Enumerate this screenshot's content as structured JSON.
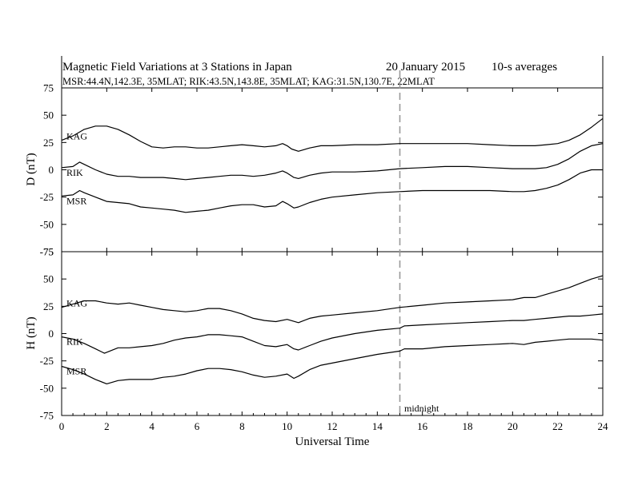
{
  "chart_data": {
    "type": "line",
    "title_left": "Magnetic Field Variations at 3 Stations in Japan",
    "title_date": "20 January 2015",
    "title_right": "10-s averages",
    "subtitle": "MSR:44.4N,142.3E, 35MLAT;  RIK:43.5N,143.8E, 35MLAT;  KAG:31.5N,130.7E, 22MLAT",
    "xlabel": "Universal Time",
    "xlim": [
      0,
      24
    ],
    "xticks": [
      0,
      2,
      4,
      6,
      8,
      10,
      12,
      14,
      16,
      18,
      20,
      22,
      24
    ],
    "midnight_line": {
      "x": 15,
      "label": "midnight"
    },
    "panels": [
      {
        "id": "D",
        "ylabel": "D (nT)",
        "ylim": [
          -75,
          75
        ],
        "yticks": [
          75,
          50,
          25,
          0,
          -25,
          -50,
          -75
        ],
        "series": [
          {
            "name": "KAG",
            "color": "#000000",
            "x": [
              0,
              0.5,
              1,
              1.5,
              2,
              2.5,
              3,
              3.5,
              4,
              4.5,
              5,
              5.5,
              6,
              6.5,
              7,
              7.5,
              8,
              8.5,
              9,
              9.5,
              9.8,
              10,
              10.2,
              10.5,
              11,
              11.5,
              12,
              13,
              14,
              15,
              16,
              17,
              18,
              19,
              20,
              20.5,
              21,
              21.5,
              22,
              22.5,
              23,
              23.5,
              24
            ],
            "values": [
              27,
              31,
              37,
              40,
              40,
              37,
              32,
              26,
              21,
              20,
              21,
              21,
              20,
              20,
              21,
              22,
              23,
              22,
              21,
              22,
              24,
              22,
              19,
              17,
              20,
              22,
              22,
              23,
              23,
              24,
              24,
              24,
              24,
              23,
              22,
              22,
              22,
              23,
              24,
              27,
              32,
              39,
              47
            ]
          },
          {
            "name": "RIK",
            "color": "#000000",
            "x": [
              0,
              0.5,
              0.8,
              1,
              1.5,
              2,
              2.5,
              3,
              3.5,
              4,
              4.5,
              5,
              5.5,
              6,
              6.5,
              7,
              7.5,
              8,
              8.5,
              9,
              9.5,
              9.8,
              10,
              10.3,
              10.5,
              11,
              11.5,
              12,
              13,
              14,
              15,
              16,
              17,
              18,
              19,
              20,
              20.5,
              21,
              21.5,
              22,
              22.5,
              23,
              23.5,
              24
            ],
            "values": [
              2,
              3,
              7,
              5,
              0,
              -4,
              -6,
              -6,
              -7,
              -7,
              -7,
              -8,
              -9,
              -8,
              -7,
              -6,
              -5,
              -5,
              -6,
              -5,
              -3,
              -1,
              -3,
              -7,
              -8,
              -5,
              -3,
              -2,
              -2,
              -1,
              1,
              2,
              3,
              3,
              2,
              1,
              1,
              1,
              2,
              5,
              10,
              17,
              22,
              24
            ]
          },
          {
            "name": "MSR",
            "color": "#000000",
            "x": [
              0,
              0.5,
              0.8,
              1,
              1.5,
              2,
              2.5,
              3,
              3.5,
              4,
              4.5,
              5,
              5.5,
              6,
              6.5,
              7,
              7.5,
              8,
              8.5,
              9,
              9.5,
              9.8,
              10,
              10.3,
              10.5,
              11,
              11.5,
              12,
              13,
              14,
              15,
              16,
              17,
              18,
              19,
              20,
              20.5,
              21,
              21.5,
              22,
              22.5,
              23,
              23.5,
              24
            ],
            "values": [
              -24,
              -23,
              -19,
              -21,
              -25,
              -29,
              -30,
              -31,
              -34,
              -35,
              -36,
              -37,
              -39,
              -38,
              -37,
              -35,
              -33,
              -32,
              -32,
              -34,
              -33,
              -29,
              -31,
              -35,
              -34,
              -30,
              -27,
              -25,
              -23,
              -21,
              -20,
              -19,
              -19,
              -19,
              -19,
              -20,
              -20,
              -19,
              -17,
              -14,
              -9,
              -3,
              0,
              0
            ]
          }
        ]
      },
      {
        "id": "H",
        "ylabel": "H (nT)",
        "ylim": [
          -75,
          75
        ],
        "yticks": [
          75,
          50,
          25,
          0,
          -25,
          -50,
          -75
        ],
        "series": [
          {
            "name": "KAG",
            "color": "#000000",
            "x": [
              0,
              0.5,
              1,
              1.5,
              2,
              2.5,
              3,
              3.5,
              4,
              4.5,
              5,
              5.5,
              6,
              6.5,
              7,
              7.5,
              8,
              8.5,
              9,
              9.5,
              10,
              10.5,
              11,
              11.5,
              12,
              13,
              14,
              15,
              16,
              17,
              18,
              19,
              20,
              20.5,
              21,
              21.5,
              22,
              22.5,
              23,
              23.5,
              24
            ],
            "values": [
              24,
              27,
              30,
              30,
              28,
              27,
              28,
              26,
              24,
              22,
              21,
              20,
              21,
              23,
              23,
              21,
              18,
              14,
              12,
              11,
              13,
              10,
              14,
              16,
              17,
              19,
              21,
              24,
              26,
              28,
              29,
              30,
              31,
              33,
              33,
              36,
              39,
              42,
              46,
              50,
              53
            ]
          },
          {
            "name": "RIK",
            "color": "#000000",
            "x": [
              0,
              0.5,
              1,
              1.5,
              1.9,
              2.5,
              3,
              3.5,
              4,
              4.5,
              5,
              5.5,
              6,
              6.5,
              7,
              7.5,
              8,
              8.5,
              9,
              9.5,
              10,
              10.3,
              10.5,
              11,
              11.5,
              12,
              13,
              14,
              15,
              15.2,
              16,
              17,
              18,
              19,
              20,
              20.5,
              21,
              21.5,
              22,
              22.5,
              23,
              23.5,
              24
            ],
            "values": [
              -3,
              -5,
              -9,
              -14,
              -18,
              -13,
              -13,
              -12,
              -11,
              -9,
              -6,
              -4,
              -3,
              -1,
              -1,
              -2,
              -3,
              -7,
              -11,
              -12,
              -10,
              -14,
              -15,
              -11,
              -7,
              -4,
              0,
              3,
              5,
              7,
              8,
              9,
              10,
              11,
              12,
              12,
              13,
              14,
              15,
              16,
              16,
              17,
              18
            ]
          },
          {
            "name": "MSR",
            "color": "#000000",
            "x": [
              0,
              0.5,
              1,
              1.5,
              2,
              2.5,
              3,
              3.5,
              4,
              4.5,
              5,
              5.5,
              6,
              6.5,
              7,
              7.5,
              8,
              8.5,
              9,
              9.5,
              10,
              10.3,
              10.5,
              11,
              11.5,
              12,
              13,
              14,
              15,
              15.2,
              16,
              17,
              18,
              19,
              20,
              20.5,
              21,
              21.5,
              22,
              22.5,
              23,
              23.5,
              24
            ],
            "values": [
              -30,
              -33,
              -37,
              -42,
              -46,
              -43,
              -42,
              -42,
              -42,
              -40,
              -39,
              -37,
              -34,
              -32,
              -32,
              -33,
              -35,
              -38,
              -40,
              -39,
              -37,
              -41,
              -39,
              -33,
              -29,
              -27,
              -23,
              -19,
              -16,
              -14,
              -14,
              -12,
              -11,
              -10,
              -9,
              -10,
              -8,
              -7,
              -6,
              -5,
              -5,
              -5,
              -6
            ]
          }
        ]
      }
    ]
  }
}
